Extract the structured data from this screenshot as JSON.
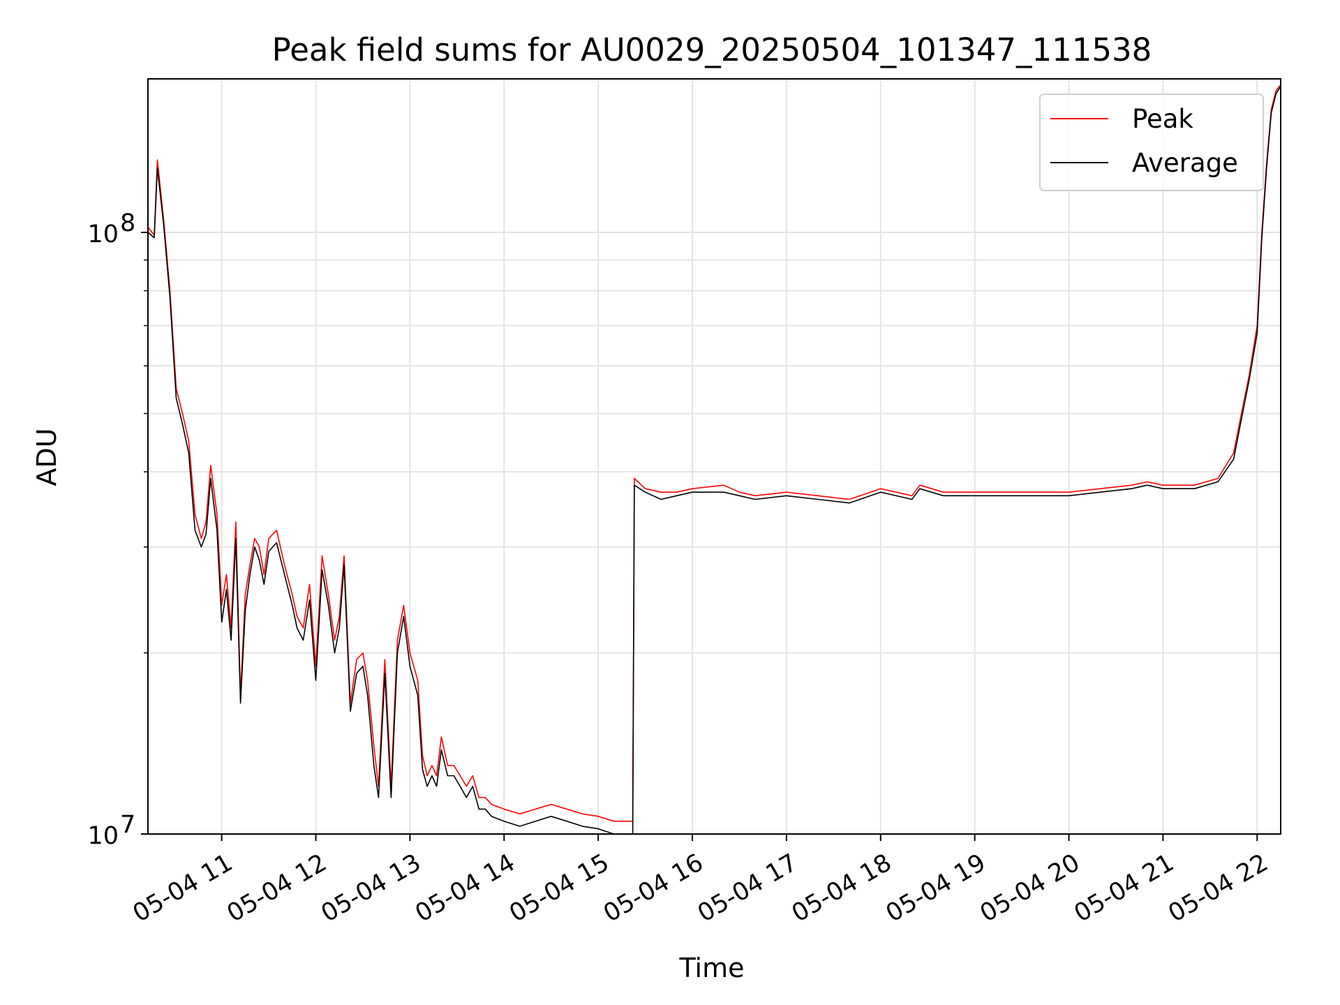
{
  "chart_data": {
    "type": "line",
    "title": "Peak field sums for AU0029_20250504_101347_111538",
    "xlabel": "Time",
    "ylabel": "ADU",
    "yscale": "log",
    "ylim": [
      10000000,
      180000000
    ],
    "xlim": [
      "05-04 10:13",
      "05-04 22:15"
    ],
    "grid": true,
    "legend_position": "top-right",
    "x_ticks": [
      "05-04 11",
      "05-04 12",
      "05-04 13",
      "05-04 14",
      "05-04 15",
      "05-04 16",
      "05-04 17",
      "05-04 18",
      "05-04 19",
      "05-04 20",
      "05-04 21",
      "05-04 22"
    ],
    "y_ticks": [
      {
        "label_base": "10",
        "label_exp": "7",
        "value": 10000000
      },
      {
        "label_base": "10",
        "label_exp": "8",
        "value": 100000000
      }
    ],
    "x": [
      "05-04 10:13",
      "05-04 10:17",
      "05-04 10:19",
      "05-04 10:23",
      "05-04 10:27",
      "05-04 10:31",
      "05-04 10:35",
      "05-04 10:39",
      "05-04 10:43",
      "05-04 10:47",
      "05-04 10:50",
      "05-04 10:53",
      "05-04 10:57",
      "05-04 11:00",
      "05-04 11:03",
      "05-04 11:06",
      "05-04 11:09",
      "05-04 11:12",
      "05-04 11:15",
      "05-04 11:18",
      "05-04 11:21",
      "05-04 11:24",
      "05-04 11:27",
      "05-04 11:30",
      "05-04 11:35",
      "05-04 11:40",
      "05-04 11:45",
      "05-04 11:48",
      "05-04 11:52",
      "05-04 11:56",
      "05-04 12:00",
      "05-04 12:04",
      "05-04 12:08",
      "05-04 12:12",
      "05-04 12:15",
      "05-04 12:18",
      "05-04 12:22",
      "05-04 12:26",
      "05-04 12:30",
      "05-04 12:33",
      "05-04 12:37",
      "05-04 12:40",
      "05-04 12:44",
      "05-04 12:48",
      "05-04 12:52",
      "05-04 12:56",
      "05-04 13:00",
      "05-04 13:05",
      "05-04 13:08",
      "05-04 13:11",
      "05-04 13:14",
      "05-04 13:17",
      "05-04 13:20",
      "05-04 13:24",
      "05-04 13:28",
      "05-04 13:32",
      "05-04 13:36",
      "05-04 13:40",
      "05-04 13:44",
      "05-04 13:48",
      "05-04 13:52",
      "05-04 14:00",
      "05-04 14:10",
      "05-04 14:20",
      "05-04 14:30",
      "05-04 14:40",
      "05-04 14:50",
      "05-04 15:00",
      "05-04 15:10",
      "05-04 15:22",
      "05-04 15:23",
      "05-04 15:30",
      "05-04 15:40",
      "05-04 15:50",
      "05-04 16:00",
      "05-04 16:20",
      "05-04 16:30",
      "05-04 16:40",
      "05-04 17:00",
      "05-04 17:20",
      "05-04 17:40",
      "05-04 18:00",
      "05-04 18:20",
      "05-04 18:25",
      "05-04 18:40",
      "05-04 19:00",
      "05-04 19:20",
      "05-04 19:40",
      "05-04 20:00",
      "05-04 20:20",
      "05-04 20:40",
      "05-04 20:50",
      "05-04 21:00",
      "05-04 21:20",
      "05-04 21:35",
      "05-04 21:45",
      "05-04 21:50",
      "05-04 21:55",
      "05-04 22:00",
      "05-04 22:03",
      "05-04 22:06",
      "05-04 22:09",
      "05-04 22:12",
      "05-04 22:15"
    ],
    "series": [
      {
        "name": "Peak",
        "color": "#ff0000",
        "values": [
          102000000,
          99000000,
          132000000,
          105000000,
          80000000,
          55000000,
          50000000,
          45000000,
          34000000,
          31000000,
          33000000,
          41000000,
          34000000,
          24000000,
          27000000,
          22000000,
          33000000,
          17000000,
          25000000,
          28000000,
          31000000,
          30000000,
          27000000,
          31000000,
          32000000,
          28000000,
          25000000,
          23000000,
          22000000,
          26000000,
          19000000,
          29000000,
          25000000,
          21000000,
          23000000,
          29000000,
          16500000,
          19500000,
          20000000,
          18000000,
          14000000,
          12000000,
          19500000,
          12000000,
          21000000,
          24000000,
          20000000,
          18000000,
          13500000,
          12500000,
          13000000,
          12500000,
          14500000,
          13000000,
          13000000,
          12500000,
          12000000,
          12500000,
          11500000,
          11500000,
          11200000,
          11000000,
          10800000,
          11000000,
          11200000,
          11000000,
          10800000,
          10700000,
          10500000,
          10500000,
          39000000,
          37500000,
          37000000,
          37000000,
          37500000,
          38000000,
          37000000,
          36500000,
          37000000,
          36500000,
          36000000,
          37500000,
          36500000,
          38000000,
          37000000,
          37000000,
          37000000,
          37000000,
          37000000,
          37500000,
          38000000,
          38500000,
          38000000,
          38000000,
          39000000,
          43000000,
          50000000,
          58000000,
          70000000,
          100000000,
          130000000,
          160000000,
          172000000,
          176000000
        ]
      },
      {
        "name": "Average",
        "color": "#000000",
        "values": [
          100000000,
          98000000,
          128000000,
          103000000,
          78000000,
          53000000,
          48000000,
          43000000,
          32000000,
          30000000,
          31500000,
          39000000,
          32000000,
          22500000,
          25500000,
          21000000,
          31000000,
          16500000,
          23500000,
          27000000,
          30000000,
          28500000,
          26000000,
          29500000,
          30500000,
          27000000,
          24000000,
          22000000,
          21000000,
          24500000,
          18000000,
          27500000,
          24000000,
          20000000,
          22000000,
          28000000,
          16000000,
          18500000,
          19000000,
          17000000,
          13000000,
          11500000,
          18500000,
          11500000,
          20000000,
          23000000,
          19000000,
          17000000,
          12800000,
          12000000,
          12500000,
          12000000,
          13800000,
          12500000,
          12500000,
          12000000,
          11500000,
          12000000,
          11000000,
          11000000,
          10700000,
          10500000,
          10300000,
          10500000,
          10700000,
          10500000,
          10300000,
          10200000,
          10000000,
          10000000,
          38000000,
          37000000,
          36000000,
          36500000,
          37000000,
          37000000,
          36500000,
          36000000,
          36500000,
          36000000,
          35500000,
          37000000,
          36000000,
          37500000,
          36500000,
          36500000,
          36500000,
          36500000,
          36500000,
          37000000,
          37500000,
          38000000,
          37500000,
          37500000,
          38500000,
          42000000,
          49000000,
          57000000,
          68000000,
          98000000,
          128000000,
          158000000,
          170000000,
          175000000
        ]
      }
    ]
  }
}
